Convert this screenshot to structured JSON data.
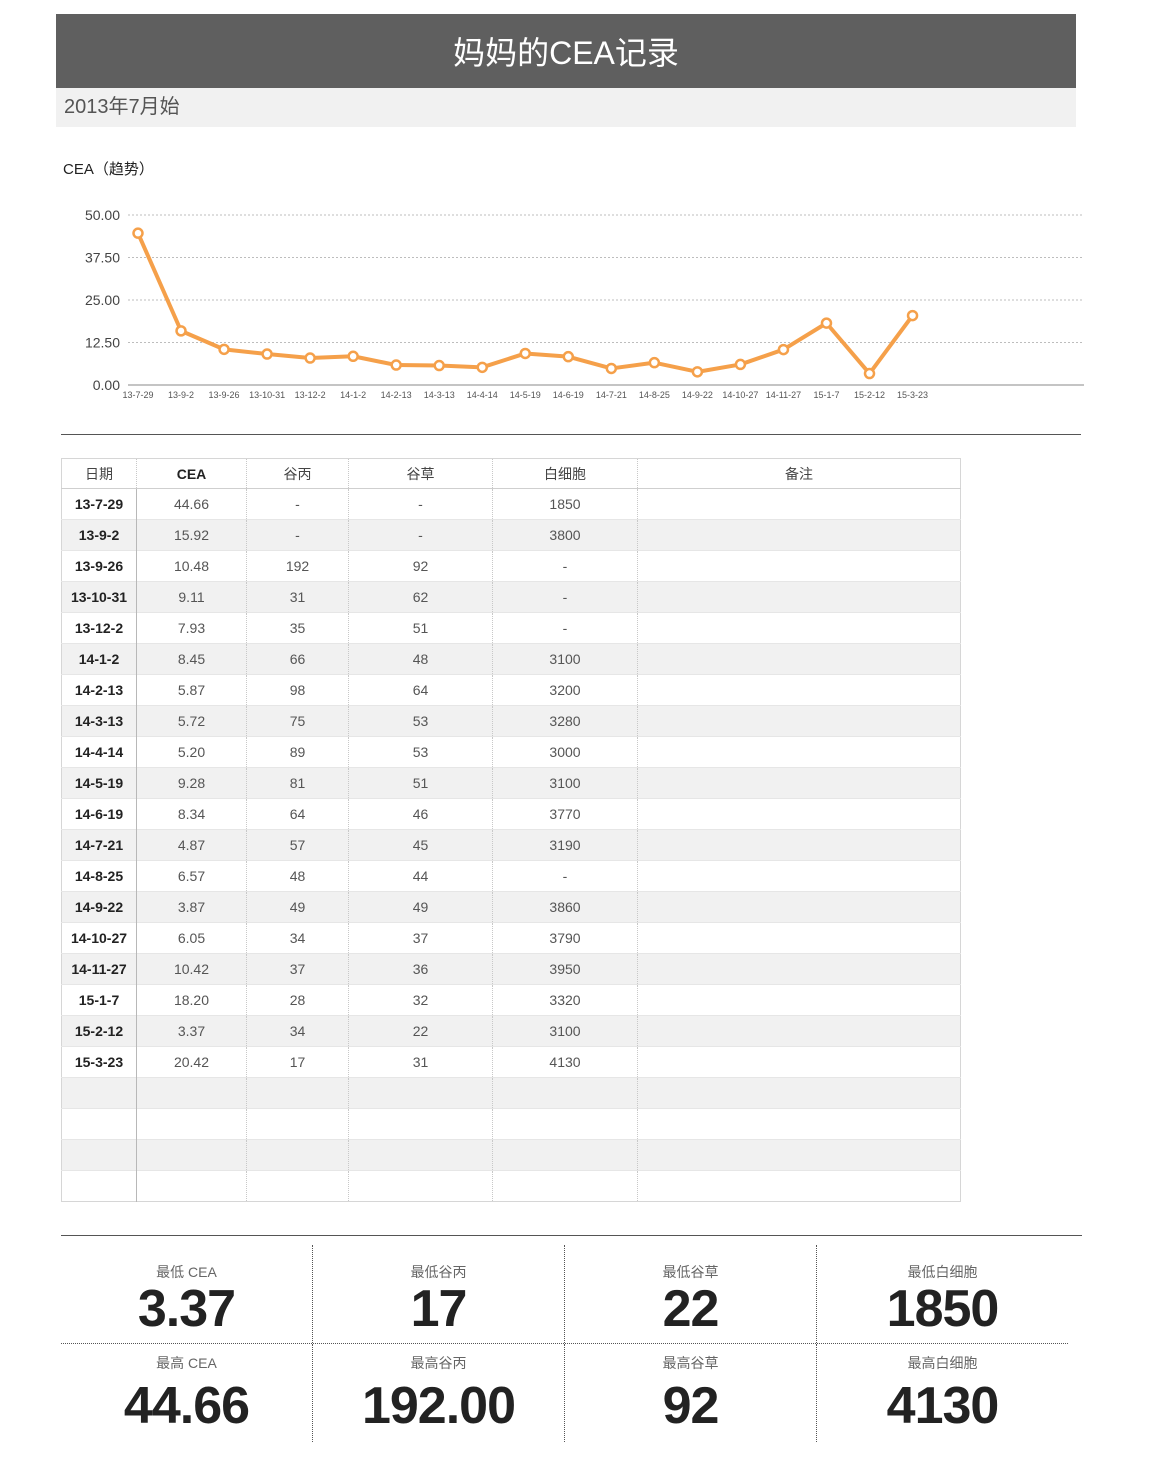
{
  "header": {
    "title": "妈妈的CEA记录",
    "subtitle": "2013年7月始"
  },
  "chart_title": "CEA（趋势）",
  "chart_data": {
    "type": "line",
    "title": "CEA（趋势）",
    "categories": [
      "13-7-29",
      "13-9-2",
      "13-9-26",
      "13-10-31",
      "13-12-2",
      "14-1-2",
      "14-2-13",
      "14-3-13",
      "14-4-14",
      "14-5-19",
      "14-6-19",
      "14-7-21",
      "14-8-25",
      "14-9-22",
      "14-10-27",
      "14-11-27",
      "15-1-7",
      "15-2-12",
      "15-3-23"
    ],
    "series": [
      {
        "values": [
          44.66,
          15.92,
          10.48,
          9.11,
          7.93,
          8.45,
          5.87,
          5.72,
          5.2,
          9.28,
          8.34,
          4.87,
          6.57,
          3.87,
          6.05,
          10.42,
          18.2,
          3.37,
          20.42
        ]
      }
    ],
    "yticks": [
      "0.00",
      "12.50",
      "25.00",
      "37.50",
      "50.00"
    ],
    "ylim": [
      0,
      50
    ],
    "grid": true,
    "color": "#f5a04a"
  },
  "table": {
    "headers": [
      "日期",
      "CEA",
      "谷丙",
      "谷草",
      "白细胞",
      "备注"
    ],
    "rows": [
      [
        "13-7-29",
        "44.66",
        "-",
        "-",
        "1850",
        ""
      ],
      [
        "13-9-2",
        "15.92",
        "-",
        "-",
        "3800",
        ""
      ],
      [
        "13-9-26",
        "10.48",
        "192",
        "92",
        "-",
        ""
      ],
      [
        "13-10-31",
        "9.11",
        "31",
        "62",
        "-",
        ""
      ],
      [
        "13-12-2",
        "7.93",
        "35",
        "51",
        "-",
        ""
      ],
      [
        "14-1-2",
        "8.45",
        "66",
        "48",
        "3100",
        ""
      ],
      [
        "14-2-13",
        "5.87",
        "98",
        "64",
        "3200",
        ""
      ],
      [
        "14-3-13",
        "5.72",
        "75",
        "53",
        "3280",
        ""
      ],
      [
        "14-4-14",
        "5.20",
        "89",
        "53",
        "3000",
        ""
      ],
      [
        "14-5-19",
        "9.28",
        "81",
        "51",
        "3100",
        ""
      ],
      [
        "14-6-19",
        "8.34",
        "64",
        "46",
        "3770",
        ""
      ],
      [
        "14-7-21",
        "4.87",
        "57",
        "45",
        "3190",
        ""
      ],
      [
        "14-8-25",
        "6.57",
        "48",
        "44",
        "-",
        ""
      ],
      [
        "14-9-22",
        "3.87",
        "49",
        "49",
        "3860",
        ""
      ],
      [
        "14-10-27",
        "6.05",
        "34",
        "37",
        "3790",
        ""
      ],
      [
        "14-11-27",
        "10.42",
        "37",
        "36",
        "3950",
        ""
      ],
      [
        "15-1-7",
        "18.20",
        "28",
        "32",
        "3320",
        ""
      ],
      [
        "15-2-12",
        "3.37",
        "34",
        "22",
        "3100",
        ""
      ],
      [
        "15-3-23",
        "20.42",
        "17",
        "31",
        "4130",
        ""
      ],
      [
        "",
        "",
        "",
        "",
        "",
        ""
      ],
      [
        "",
        "",
        "",
        "",
        "",
        ""
      ],
      [
        "",
        "",
        "",
        "",
        "",
        ""
      ],
      [
        "",
        "",
        "",
        "",
        "",
        ""
      ]
    ]
  },
  "stats": {
    "min": [
      {
        "label": "最低 CEA",
        "value": "3.37"
      },
      {
        "label": "最低谷丙",
        "value": "17"
      },
      {
        "label": "最低谷草",
        "value": "22"
      },
      {
        "label": "最低白细胞",
        "value": "1850"
      }
    ],
    "max": [
      {
        "label": "最高 CEA",
        "value": "44.66"
      },
      {
        "label": "最高谷丙",
        "value": "192.00"
      },
      {
        "label": "最高谷草",
        "value": "92"
      },
      {
        "label": "最高白细胞",
        "value": "4130"
      }
    ]
  }
}
